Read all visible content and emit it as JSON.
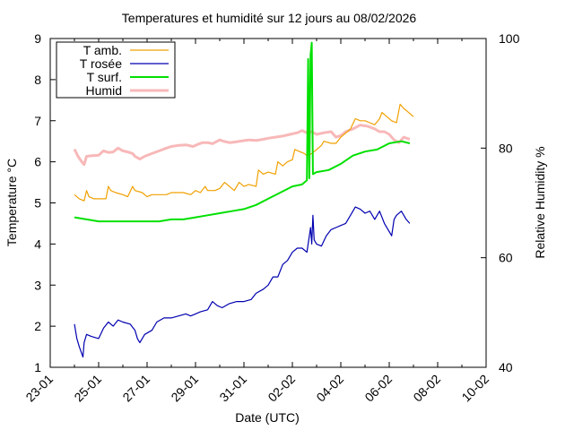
{
  "chart_data": {
    "type": "line",
    "title": "Temperatures et humidité sur 12 jours au 08/02/2026",
    "xlabel": "Date (UTC)",
    "ylabel": "Temperature °C",
    "y2label": "Relative Humidity %",
    "x_ticks": [
      "23-01",
      "25-01",
      "27-01",
      "29-01",
      "31-01",
      "02-02",
      "04-02",
      "06-02",
      "08-02",
      "10-02"
    ],
    "xlim": [
      0,
      18
    ],
    "ylim": [
      1,
      9
    ],
    "y_ticks": [
      1,
      2,
      3,
      4,
      5,
      6,
      7,
      8,
      9
    ],
    "y2lim": [
      40,
      100
    ],
    "y2_ticks": [
      40,
      60,
      80,
      100
    ],
    "legend_position": "top-left",
    "grid": false,
    "series": [
      {
        "name": "T amb.",
        "color": "#f0a000",
        "axis": "left",
        "points": [
          [
            1,
            5.2
          ],
          [
            1.2,
            5.1
          ],
          [
            1.4,
            5.05
          ],
          [
            1.5,
            5.3
          ],
          [
            1.6,
            5.15
          ],
          [
            1.8,
            5.1
          ],
          [
            2,
            5.1
          ],
          [
            2.3,
            5.1
          ],
          [
            2.4,
            5.4
          ],
          [
            2.5,
            5.3
          ],
          [
            2.7,
            5.25
          ],
          [
            3,
            5.2
          ],
          [
            3.2,
            5.15
          ],
          [
            3.4,
            5.4
          ],
          [
            3.5,
            5.3
          ],
          [
            3.8,
            5.25
          ],
          [
            4,
            5.15
          ],
          [
            4.2,
            5.2
          ],
          [
            4.5,
            5.2
          ],
          [
            4.8,
            5.2
          ],
          [
            5,
            5.25
          ],
          [
            5.5,
            5.25
          ],
          [
            5.8,
            5.2
          ],
          [
            6,
            5.3
          ],
          [
            6.2,
            5.25
          ],
          [
            6.4,
            5.4
          ],
          [
            6.5,
            5.3
          ],
          [
            6.8,
            5.3
          ],
          [
            7,
            5.35
          ],
          [
            7.2,
            5.5
          ],
          [
            7.4,
            5.4
          ],
          [
            7.6,
            5.3
          ],
          [
            7.8,
            5.5
          ],
          [
            8,
            5.4
          ],
          [
            8.2,
            5.45
          ],
          [
            8.5,
            5.4
          ],
          [
            8.6,
            5.8
          ],
          [
            8.8,
            5.7
          ],
          [
            9,
            5.75
          ],
          [
            9.3,
            5.7
          ],
          [
            9.4,
            6.0
          ],
          [
            9.6,
            5.9
          ],
          [
            9.8,
            6.0
          ],
          [
            10,
            6.05
          ],
          [
            10.1,
            6.3
          ],
          [
            10.3,
            6.25
          ],
          [
            10.5,
            6.2
          ],
          [
            10.6,
            6.15
          ],
          [
            10.8,
            6.2
          ],
          [
            11,
            6.3
          ],
          [
            11.2,
            6.4
          ],
          [
            11.3,
            6.5
          ],
          [
            11.6,
            6.45
          ],
          [
            11.8,
            6.45
          ],
          [
            12,
            6.6
          ],
          [
            12.2,
            6.7
          ],
          [
            12.4,
            6.8
          ],
          [
            12.6,
            7.05
          ],
          [
            12.8,
            7.0
          ],
          [
            13,
            7.0
          ],
          [
            13.2,
            6.95
          ],
          [
            13.4,
            6.9
          ],
          [
            13.6,
            7.05
          ],
          [
            13.7,
            7.2
          ],
          [
            13.9,
            7.1
          ],
          [
            14.1,
            7.0
          ],
          [
            14.3,
            6.95
          ],
          [
            14.45,
            7.4
          ],
          [
            14.6,
            7.3
          ],
          [
            14.8,
            7.2
          ],
          [
            15,
            7.1
          ]
        ]
      },
      {
        "name": "T rosée",
        "color": "#0000b0",
        "axis": "left",
        "points": [
          [
            1,
            2.05
          ],
          [
            1.1,
            1.7
          ],
          [
            1.2,
            1.5
          ],
          [
            1.35,
            1.25
          ],
          [
            1.4,
            1.6
          ],
          [
            1.5,
            1.8
          ],
          [
            1.7,
            1.75
          ],
          [
            2,
            1.7
          ],
          [
            2.2,
            1.95
          ],
          [
            2.4,
            2.1
          ],
          [
            2.6,
            2.0
          ],
          [
            2.8,
            2.15
          ],
          [
            3,
            2.1
          ],
          [
            3.3,
            2.05
          ],
          [
            3.5,
            1.9
          ],
          [
            3.6,
            1.7
          ],
          [
            3.7,
            1.6
          ],
          [
            3.9,
            1.8
          ],
          [
            4.2,
            1.9
          ],
          [
            4.4,
            2.1
          ],
          [
            4.7,
            2.2
          ],
          [
            5,
            2.2
          ],
          [
            5.3,
            2.25
          ],
          [
            5.6,
            2.3
          ],
          [
            5.8,
            2.25
          ],
          [
            6,
            2.3
          ],
          [
            6.2,
            2.35
          ],
          [
            6.5,
            2.4
          ],
          [
            6.7,
            2.6
          ],
          [
            6.9,
            2.5
          ],
          [
            7.1,
            2.45
          ],
          [
            7.4,
            2.55
          ],
          [
            7.7,
            2.6
          ],
          [
            8,
            2.6
          ],
          [
            8.3,
            2.65
          ],
          [
            8.5,
            2.8
          ],
          [
            8.8,
            2.9
          ],
          [
            9,
            3.0
          ],
          [
            9.2,
            3.2
          ],
          [
            9.4,
            3.2
          ],
          [
            9.6,
            3.5
          ],
          [
            9.8,
            3.6
          ],
          [
            10,
            3.8
          ],
          [
            10.2,
            3.9
          ],
          [
            10.4,
            3.9
          ],
          [
            10.6,
            3.8
          ],
          [
            10.75,
            4.4
          ],
          [
            10.8,
            4.0
          ],
          [
            10.85,
            4.7
          ],
          [
            10.9,
            4.1
          ],
          [
            11,
            4.0
          ],
          [
            11.2,
            3.95
          ],
          [
            11.4,
            4.2
          ],
          [
            11.6,
            4.35
          ],
          [
            11.8,
            4.4
          ],
          [
            12,
            4.45
          ],
          [
            12.2,
            4.5
          ],
          [
            12.4,
            4.7
          ],
          [
            12.6,
            4.9
          ],
          [
            12.8,
            4.85
          ],
          [
            13,
            4.75
          ],
          [
            13.2,
            4.8
          ],
          [
            13.4,
            4.6
          ],
          [
            13.6,
            4.8
          ],
          [
            13.8,
            4.5
          ],
          [
            14,
            4.3
          ],
          [
            14.1,
            4.2
          ],
          [
            14.2,
            4.6
          ],
          [
            14.3,
            4.7
          ],
          [
            14.5,
            4.8
          ],
          [
            14.7,
            4.6
          ],
          [
            14.85,
            4.5
          ]
        ]
      },
      {
        "name": "T surf.",
        "color": "#00e000",
        "axis": "left",
        "points": [
          [
            1,
            4.65
          ],
          [
            1.5,
            4.6
          ],
          [
            2,
            4.55
          ],
          [
            2.5,
            4.55
          ],
          [
            3,
            4.55
          ],
          [
            3.5,
            4.55
          ],
          [
            4,
            4.55
          ],
          [
            4.5,
            4.55
          ],
          [
            5,
            4.6
          ],
          [
            5.5,
            4.6
          ],
          [
            6,
            4.65
          ],
          [
            6.5,
            4.7
          ],
          [
            7,
            4.75
          ],
          [
            7.5,
            4.8
          ],
          [
            8,
            4.85
          ],
          [
            8.5,
            4.95
          ],
          [
            9,
            5.1
          ],
          [
            9.5,
            5.25
          ],
          [
            10,
            5.4
          ],
          [
            10.4,
            5.45
          ],
          [
            10.6,
            5.55
          ],
          [
            10.65,
            8.5
          ],
          [
            10.7,
            5.6
          ],
          [
            10.75,
            8.6
          ],
          [
            10.8,
            8.9
          ],
          [
            10.85,
            5.7
          ],
          [
            11,
            5.75
          ],
          [
            11.5,
            5.8
          ],
          [
            12,
            5.95
          ],
          [
            12.5,
            6.15
          ],
          [
            13,
            6.25
          ],
          [
            13.5,
            6.3
          ],
          [
            14,
            6.45
          ],
          [
            14.5,
            6.5
          ],
          [
            14.85,
            6.45
          ]
        ]
      },
      {
        "name": "Humid",
        "color": "#f8b8b8",
        "axis": "right",
        "points": [
          [
            1,
            79.8
          ],
          [
            1.15,
            78.5
          ],
          [
            1.3,
            77.5
          ],
          [
            1.4,
            77.0
          ],
          [
            1.5,
            78.5
          ],
          [
            1.7,
            78.6
          ],
          [
            2,
            78.7
          ],
          [
            2.2,
            79.5
          ],
          [
            2.4,
            79.2
          ],
          [
            2.6,
            79.3
          ],
          [
            2.8,
            80.0
          ],
          [
            3,
            79.5
          ],
          [
            3.2,
            79.3
          ],
          [
            3.4,
            79.0
          ],
          [
            3.5,
            78.5
          ],
          [
            3.7,
            78.0
          ],
          [
            3.9,
            78.5
          ],
          [
            4.2,
            79.0
          ],
          [
            4.5,
            79.5
          ],
          [
            4.8,
            80.0
          ],
          [
            5,
            80.3
          ],
          [
            5.3,
            80.5
          ],
          [
            5.6,
            80.6
          ],
          [
            5.9,
            80.3
          ],
          [
            6.1,
            80.7
          ],
          [
            6.3,
            81.0
          ],
          [
            6.5,
            81.0
          ],
          [
            6.7,
            80.8
          ],
          [
            7,
            81.5
          ],
          [
            7.2,
            81.2
          ],
          [
            7.4,
            81.0
          ],
          [
            7.6,
            81.1
          ],
          [
            7.9,
            81.3
          ],
          [
            8.2,
            81.5
          ],
          [
            8.5,
            81.4
          ],
          [
            8.8,
            81.6
          ],
          [
            9,
            81.8
          ],
          [
            9.3,
            82.0
          ],
          [
            9.6,
            82.2
          ],
          [
            9.9,
            82.5
          ],
          [
            10.2,
            82.8
          ],
          [
            10.4,
            83.2
          ],
          [
            10.6,
            82.8
          ],
          [
            10.8,
            83.0
          ],
          [
            11,
            82.5
          ],
          [
            11.3,
            82.8
          ],
          [
            11.6,
            83.0
          ],
          [
            11.8,
            82.0
          ],
          [
            12,
            82.3
          ],
          [
            12.2,
            83.0
          ],
          [
            12.5,
            83.5
          ],
          [
            12.8,
            84.2
          ],
          [
            13.1,
            84.0
          ],
          [
            13.4,
            83.5
          ],
          [
            13.6,
            83.0
          ],
          [
            13.8,
            83.0
          ],
          [
            14,
            82.5
          ],
          [
            14.2,
            81.5
          ],
          [
            14.4,
            81.0
          ],
          [
            14.6,
            82.0
          ],
          [
            14.85,
            81.6
          ]
        ]
      }
    ]
  }
}
